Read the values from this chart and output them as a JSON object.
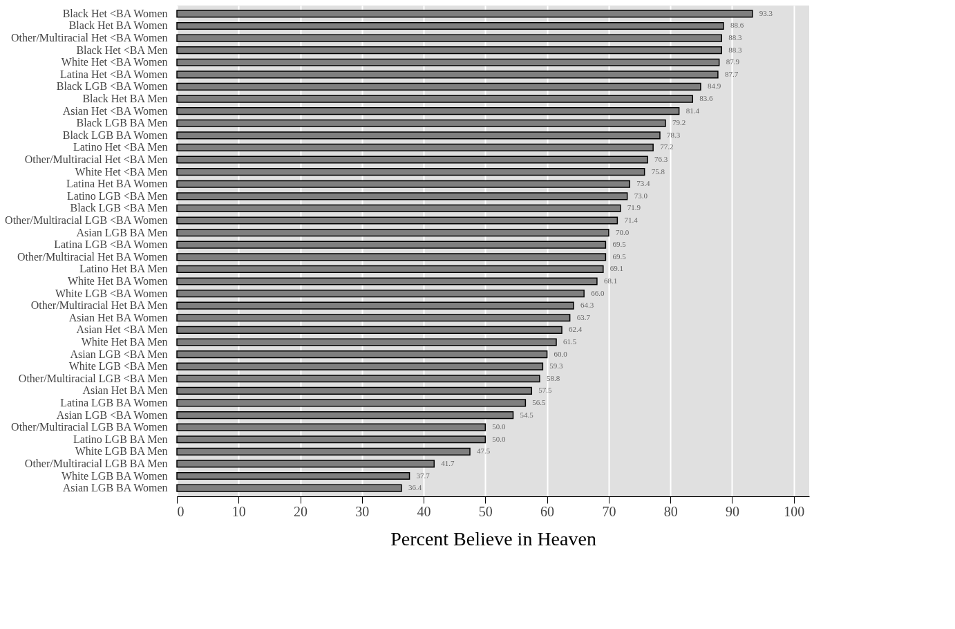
{
  "chart_data": {
    "type": "bar",
    "orientation": "horizontal",
    "xlabel": "Percent Believe in Heaven",
    "categories": [
      "Black Het <BA Women",
      "Black Het BA Women",
      "Other/Multiracial Het <BA Women",
      "Black Het <BA Men",
      "White Het <BA Women",
      "Latina Het <BA Women",
      "Black LGB <BA Women",
      "Black Het BA Men",
      "Asian Het <BA Women",
      "Black LGB BA Men",
      "Black LGB BA Women",
      "Latino Het <BA Men",
      "Other/Multiracial Het <BA Men",
      "White Het <BA Men",
      "Latina Het BA Women",
      "Latino LGB <BA Men",
      "Black LGB <BA Men",
      "Other/Multiracial LGB <BA Women",
      "Asian LGB BA Men",
      "Latina LGB <BA Women",
      "Other/Multiracial Het BA Women",
      "Latino Het BA Men",
      "White Het BA Women",
      "White LGB <BA Women",
      "Other/Multiracial Het BA Men",
      "Asian Het BA Women",
      "Asian Het <BA Men",
      "White Het BA Men",
      "Asian LGB <BA Men",
      "White LGB <BA Men",
      "Other/Multiracial LGB <BA Men",
      "Asian Het BA Men",
      "Latina LGB BA Women",
      "Asian LGB <BA Women",
      "Other/Multiracial LGB BA Women",
      "Latino LGB BA Men",
      "White LGB BA Men",
      "Other/Multiracial LGB BA Men",
      "White LGB BA Women",
      "Asian LGB BA Women"
    ],
    "values": [
      93.3,
      88.6,
      88.3,
      88.3,
      87.9,
      87.7,
      84.9,
      83.6,
      81.4,
      79.2,
      78.3,
      77.2,
      76.3,
      75.8,
      73.4,
      73.0,
      71.9,
      71.4,
      70.0,
      69.5,
      69.5,
      69.1,
      68.1,
      66.0,
      64.3,
      63.7,
      62.4,
      61.5,
      60.0,
      59.3,
      58.8,
      57.5,
      56.5,
      54.5,
      50.0,
      50.0,
      47.5,
      41.7,
      37.7,
      36.4
    ],
    "value_labels": [
      "93.3",
      "88.6",
      "88.3",
      "88.3",
      "87.9",
      "87.7",
      "84.9",
      "83.6",
      "81.4",
      "79.2",
      "78.3",
      "77.2",
      "76.3",
      "75.8",
      "73.4",
      "73.0",
      "71.9",
      "71.4",
      "70.0",
      "69.5",
      "69.5",
      "69.1",
      "68.1",
      "66.0",
      "64.3",
      "63.7",
      "62.4",
      "61.5",
      "60.0",
      "59.3",
      "58.8",
      "57.5",
      "56.5",
      "54.5",
      "50.0",
      "50.0",
      "47.5",
      "41.7",
      "37.7",
      "36.4"
    ],
    "color": "#7f7f7f",
    "xlim": [
      0,
      102.5
    ],
    "xticks": [
      0,
      10,
      20,
      30,
      40,
      50,
      60,
      70,
      80,
      90,
      100
    ],
    "grid": "x"
  }
}
